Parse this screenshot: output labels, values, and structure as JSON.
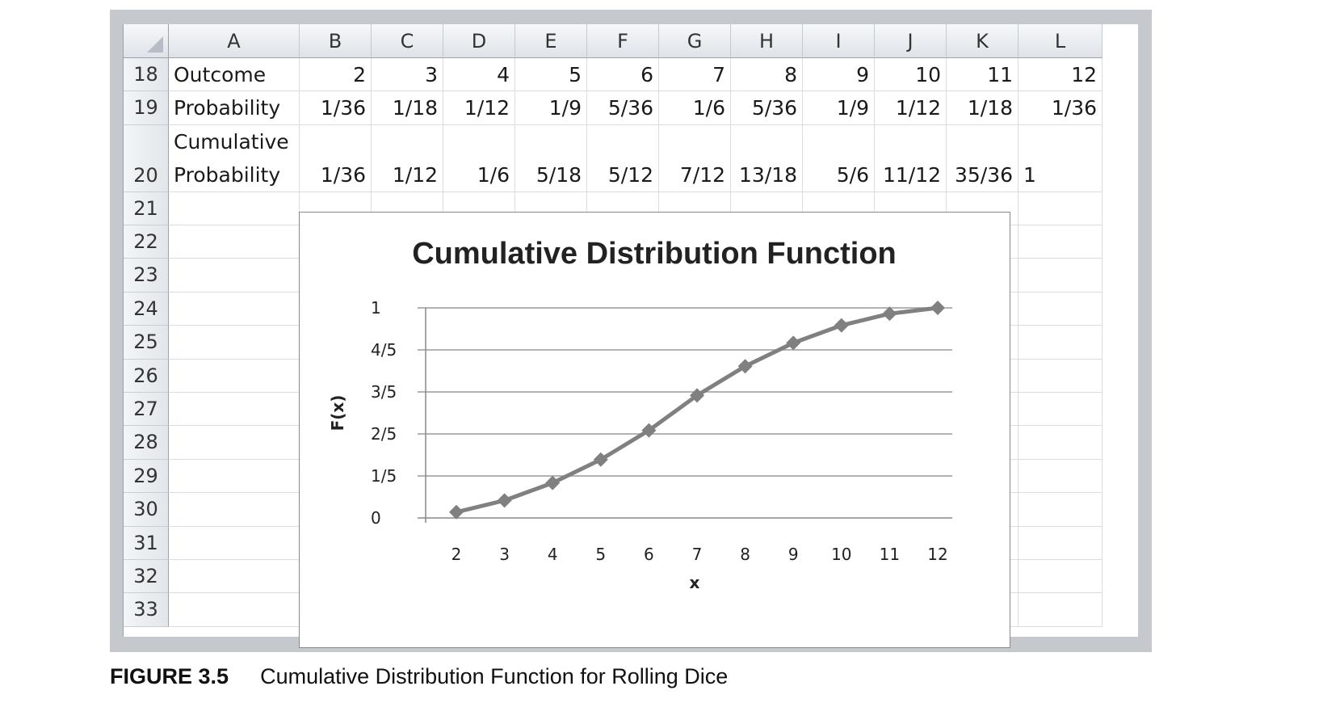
{
  "spreadsheet": {
    "columns": [
      "A",
      "B",
      "C",
      "D",
      "E",
      "F",
      "G",
      "H",
      "I",
      "J",
      "K",
      "L"
    ],
    "rows": [
      {
        "num": "18",
        "label": "Outcome",
        "values": [
          "2",
          "3",
          "4",
          "5",
          "6",
          "7",
          "8",
          "9",
          "10",
          "11",
          "12"
        ]
      },
      {
        "num": "19",
        "label": "Probability",
        "values": [
          "1/36",
          "1/18",
          "1/12",
          "1/9",
          "5/36",
          "1/6",
          "5/36",
          "1/9",
          "1/12",
          "1/18",
          "1/36"
        ]
      },
      {
        "num": "20",
        "label_line1": "Cumulative",
        "label_line2": "Probability",
        "values": [
          "1/36",
          "1/12",
          "1/6",
          "5/18",
          "5/12",
          "7/12",
          "13/18",
          "5/6",
          "11/12",
          "35/36",
          "1"
        ]
      },
      {
        "num": "21"
      },
      {
        "num": "22"
      },
      {
        "num": "23"
      },
      {
        "num": "24"
      },
      {
        "num": "25"
      },
      {
        "num": "26"
      },
      {
        "num": "27"
      },
      {
        "num": "28"
      },
      {
        "num": "29"
      },
      {
        "num": "30"
      },
      {
        "num": "31"
      },
      {
        "num": "32"
      },
      {
        "num": "33"
      }
    ]
  },
  "chart_data": {
    "type": "line",
    "title": "Cumulative Distribution Function",
    "xlabel": "x",
    "ylabel": "F(x)",
    "x": [
      2,
      3,
      4,
      5,
      6,
      7,
      8,
      9,
      10,
      11,
      12
    ],
    "y": [
      0.0278,
      0.0833,
      0.1667,
      0.2778,
      0.4167,
      0.5833,
      0.7222,
      0.8333,
      0.9167,
      0.9722,
      1.0
    ],
    "ylim": [
      0,
      1
    ],
    "yticks": [
      0,
      0.2,
      0.4,
      0.6,
      0.8,
      1
    ],
    "ytick_labels": [
      "0",
      "1/5",
      "2/5",
      "3/5",
      "4/5",
      "1"
    ],
    "grid": true,
    "legend": "none",
    "line_color": "#808080"
  },
  "caption": {
    "figure_label": "FIGURE 3.5",
    "text": "Cumulative Distribution Function for Rolling Dice"
  }
}
